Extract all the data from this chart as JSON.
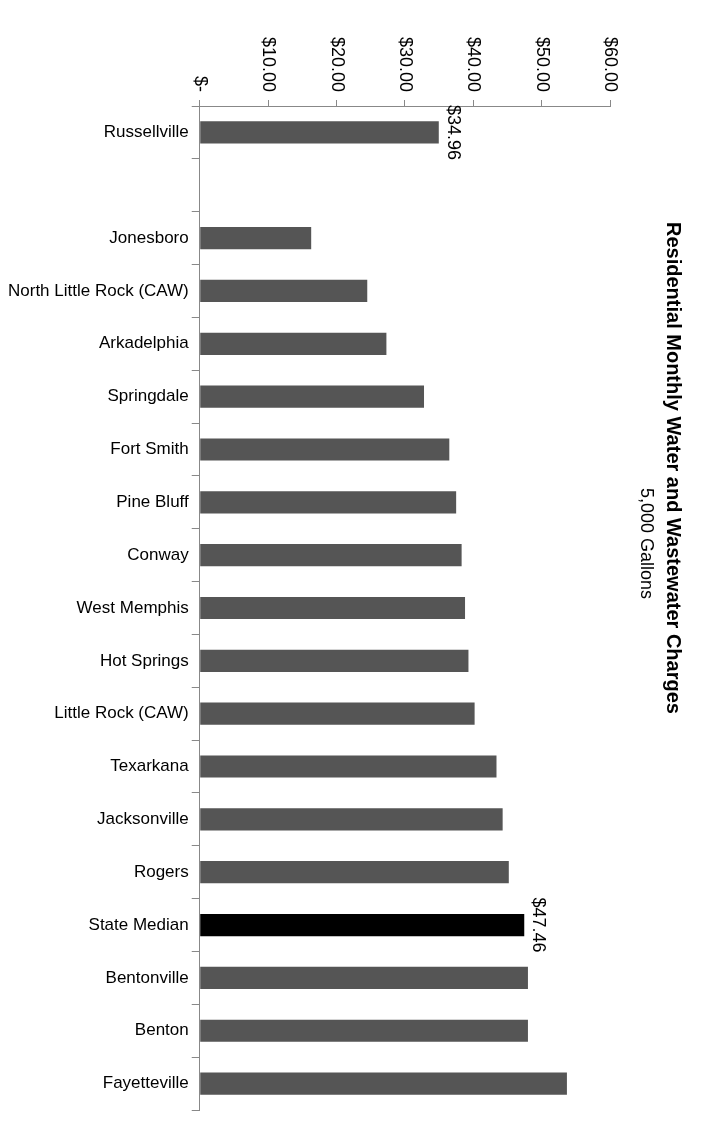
{
  "chart_data": {
    "type": "bar",
    "orientation": "horizontal",
    "title": "Residential Monthly Water and Wastewater Charges",
    "subtitle": "5,000 Gallons",
    "categories": [
      "Russellville",
      null,
      "Jonesboro",
      "North Little Rock (CAW)",
      "Arkadelphia",
      "Springdale",
      "Fort Smith",
      "Pine Bluff",
      "Conway",
      "West Memphis",
      "Hot Springs",
      "Little Rock (CAW)",
      "Texarkana",
      "Jacksonville",
      "Rogers",
      "State Median",
      "Bentonville",
      "Benton",
      "Fayetteville"
    ],
    "values": [
      34.96,
      null,
      16.3,
      24.5,
      27.3,
      32.8,
      36.5,
      37.5,
      38.3,
      38.8,
      39.3,
      40.2,
      43.4,
      44.3,
      45.2,
      47.46,
      48.0,
      48.0,
      53.7
    ],
    "colors": [
      "#555555",
      "#555555",
      "#555555",
      "#555555",
      "#555555",
      "#555555",
      "#555555",
      "#555555",
      "#555555",
      "#555555",
      "#555555",
      "#555555",
      "#555555",
      "#555555",
      "#555555",
      "#000000",
      "#555555",
      "#555555",
      "#555555"
    ],
    "value_labels": [
      "$34.96",
      null,
      null,
      null,
      null,
      null,
      null,
      null,
      null,
      null,
      null,
      null,
      null,
      null,
      null,
      "$47.46",
      null,
      null,
      null
    ],
    "xlim": [
      0,
      60
    ],
    "xticks": [
      {
        "value": 0,
        "label": "$-"
      },
      {
        "value": 10,
        "label": "$10.00"
      },
      {
        "value": 20,
        "label": "$20.00"
      },
      {
        "value": 30,
        "label": "$30.00"
      },
      {
        "value": 40,
        "label": "$40.00"
      },
      {
        "value": 50,
        "label": "$50.00"
      },
      {
        "value": 60,
        "label": "$60.00"
      }
    ],
    "grid": false,
    "legend": false
  }
}
